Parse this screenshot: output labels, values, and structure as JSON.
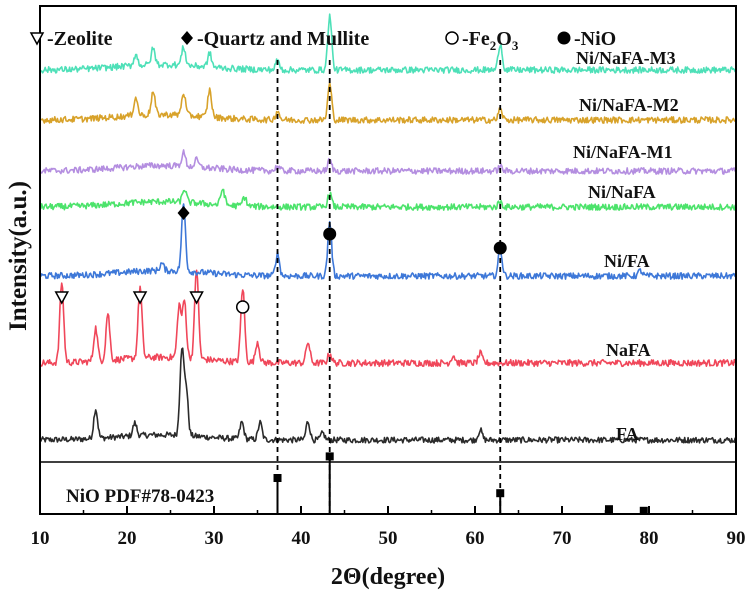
{
  "chart_data": {
    "type": "line",
    "xlabel": "2Θ(degree)",
    "ylabel": "Intensity(a.u.)",
    "xlim": [
      10,
      90
    ],
    "x_ticks": [
      10,
      20,
      30,
      40,
      50,
      60,
      70,
      80,
      90
    ],
    "legend": {
      "placement": "top",
      "entries": [
        {
          "marker": "triangle-down-open",
          "label": "-Zeolite"
        },
        {
          "marker": "diamond-filled",
          "label": "-Quartz and Mullite"
        },
        {
          "marker": "circle-open",
          "label": "-Fe",
          "sub": "2",
          "label2": "O",
          "sub2": "3"
        },
        {
          "marker": "circle-filled",
          "label": "-NiO"
        }
      ]
    },
    "reference_lines": [
      37.3,
      43.3,
      62.9
    ],
    "reference_pattern": {
      "name": "NiO PDF#78-0423",
      "peaks": [
        {
          "x": 37.3,
          "height": 0.45
        },
        {
          "x": 43.3,
          "height": 0.72
        },
        {
          "x": 62.9,
          "height": 0.26
        },
        {
          "x": 75.4,
          "height": 0.06
        },
        {
          "x": 79.4,
          "height": 0.04
        }
      ]
    },
    "series": [
      {
        "name": "FA",
        "color": "#2b2b2b",
        "baseline": 0.1,
        "peaks": [
          [
            16.4,
            0.35
          ],
          [
            20.9,
            0.15
          ],
          [
            26.3,
            1.0
          ],
          [
            26.8,
            0.55
          ],
          [
            33.2,
            0.2
          ],
          [
            35.3,
            0.2
          ],
          [
            40.8,
            0.22
          ],
          [
            60.6,
            0.12
          ],
          [
            42.5,
            0.08
          ]
        ]
      },
      {
        "name": "NaFA",
        "color": "#f0475a",
        "baseline": 0.1,
        "peaks": [
          [
            12.5,
            0.85
          ],
          [
            16.4,
            0.35
          ],
          [
            17.8,
            0.5
          ],
          [
            21.5,
            0.75
          ],
          [
            26.0,
            0.55
          ],
          [
            26.6,
            0.6
          ],
          [
            28.0,
            0.95
          ],
          [
            33.3,
            0.78
          ],
          [
            35.0,
            0.22
          ],
          [
            40.8,
            0.22
          ],
          [
            43.3,
            0.1
          ],
          [
            57.5,
            0.08
          ],
          [
            60.6,
            0.1
          ]
        ]
      },
      {
        "name": "Ni/FA",
        "color": "#3e78d8",
        "baseline": 0.1,
        "peaks": [
          [
            26.5,
            0.75
          ],
          [
            37.3,
            0.25
          ],
          [
            43.3,
            0.6
          ],
          [
            62.9,
            0.3
          ],
          [
            24.0,
            0.08
          ],
          [
            79.0,
            0.06
          ]
        ]
      },
      {
        "name": "Ni/NaFA",
        "color": "#4ce36b",
        "baseline": 0.1,
        "peaks": [
          [
            26.6,
            0.15
          ],
          [
            31.0,
            0.18
          ],
          [
            33.5,
            0.1
          ],
          [
            43.3,
            0.15
          ],
          [
            62.9,
            0.06
          ]
        ]
      },
      {
        "name": "Ni/NaFA-M1",
        "color": "#b48ee0",
        "baseline": 0.1,
        "peaks": [
          [
            26.5,
            0.15
          ],
          [
            28.0,
            0.08
          ],
          [
            37.3,
            0.05
          ],
          [
            43.3,
            0.12
          ],
          [
            62.9,
            0.05
          ]
        ]
      },
      {
        "name": "Ni/NaFA-M2",
        "color": "#d8a22a",
        "baseline": 0.1,
        "peaks": [
          [
            21.0,
            0.2
          ],
          [
            23.0,
            0.25
          ],
          [
            26.5,
            0.25
          ],
          [
            29.5,
            0.3
          ],
          [
            37.3,
            0.1
          ],
          [
            43.3,
            0.4
          ],
          [
            62.9,
            0.12
          ]
        ]
      },
      {
        "name": "Ni/NaFA-M3",
        "color": "#4ee0b8",
        "baseline": 0.1,
        "peaks": [
          [
            21.0,
            0.12
          ],
          [
            23.0,
            0.18
          ],
          [
            26.5,
            0.2
          ],
          [
            29.5,
            0.15
          ],
          [
            37.3,
            0.1
          ],
          [
            43.3,
            0.6
          ],
          [
            62.9,
            0.3
          ]
        ]
      }
    ],
    "markers": [
      {
        "type": "triangle-down-open",
        "x": 12.5,
        "series": "NaFA"
      },
      {
        "type": "triangle-down-open",
        "x": 21.5,
        "series": "NaFA"
      },
      {
        "type": "triangle-down-open",
        "x": 28.0,
        "series": "NaFA"
      },
      {
        "type": "circle-open",
        "x": 33.3,
        "series": "NaFA"
      },
      {
        "type": "diamond-filled",
        "x": 26.5,
        "series": "Ni/FA"
      },
      {
        "type": "circle-filled",
        "x": 43.3,
        "series": "Ni/FA"
      },
      {
        "type": "circle-filled",
        "x": 62.9,
        "series": "Ni/FA"
      }
    ]
  }
}
